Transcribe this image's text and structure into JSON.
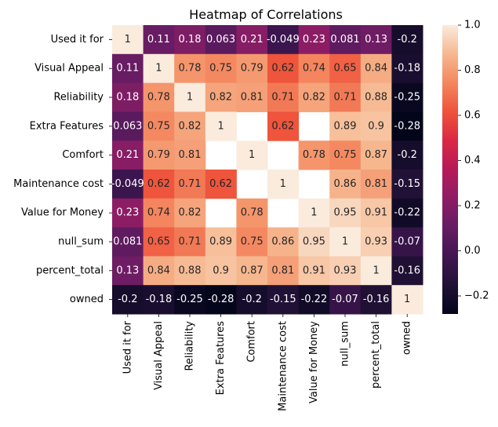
{
  "chart_data": {
    "type": "heatmap",
    "title": "Heatmap of Correlations",
    "xlabel": "",
    "ylabel": "",
    "labels": [
      "Used it for",
      "Visual Appeal",
      "Reliability",
      "Extra Features",
      "Comfort",
      "Maintenance cost",
      "Value for Money",
      "null_sum",
      "percent_total",
      "owned"
    ],
    "cells": [
      [
        "1",
        "0.11",
        "0.18",
        "0.063",
        "0.21",
        "-0.049",
        "0.23",
        "0.081",
        "0.13",
        "-0.2"
      ],
      [
        "0.11",
        "1",
        "0.78",
        "0.75",
        "0.79",
        "0.62",
        "0.74",
        "0.65",
        "0.84",
        "-0.18"
      ],
      [
        "0.18",
        "0.78",
        "1",
        "0.82",
        "0.81",
        "0.71",
        "0.82",
        "0.71",
        "0.88",
        "-0.25"
      ],
      [
        "0.063",
        "0.75",
        "0.82",
        "1",
        null,
        "0.62",
        null,
        "0.89",
        "0.9",
        "-0.28"
      ],
      [
        "0.21",
        "0.79",
        "0.81",
        null,
        "1",
        null,
        "0.78",
        "0.75",
        "0.87",
        "-0.2"
      ],
      [
        "-0.049",
        "0.62",
        "0.71",
        "0.62",
        null,
        "1",
        null,
        "0.86",
        "0.81",
        "-0.15"
      ],
      [
        "0.23",
        "0.74",
        "0.82",
        null,
        "0.78",
        null,
        "1",
        "0.95",
        "0.91",
        "-0.22"
      ],
      [
        "0.081",
        "0.65",
        "0.71",
        "0.89",
        "0.75",
        "0.86",
        "0.95",
        "1",
        "0.93",
        "-0.07"
      ],
      [
        "0.13",
        "0.84",
        "0.88",
        "0.9",
        "0.87",
        "0.81",
        "0.91",
        "0.93",
        "1",
        "-0.16"
      ],
      [
        "-0.2",
        "-0.18",
        "-0.25",
        "-0.28",
        "-0.2",
        "-0.15",
        "-0.22",
        "-0.07",
        "-0.16",
        "1"
      ]
    ],
    "colorbar": {
      "range": [
        -0.28,
        1.0
      ],
      "ticks": [
        1.0,
        0.8,
        0.6,
        0.4,
        0.2,
        0.0,
        -0.2
      ],
      "tick_labels": [
        "1.0",
        "0.8",
        "0.6",
        "0.4",
        "0.2",
        "0.0",
        "−0.2"
      ]
    },
    "colormap": "rocket",
    "missing_cells": "blank (white)",
    "grid": false
  }
}
